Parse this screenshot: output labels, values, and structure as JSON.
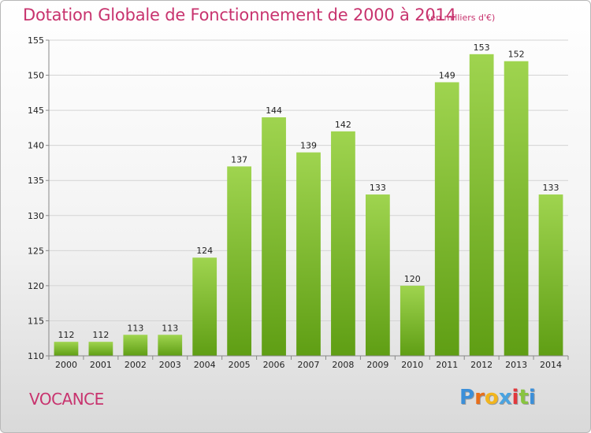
{
  "chart_data": {
    "type": "bar",
    "title": "Dotation Globale de Fonctionnement de 2000 à 2014",
    "unit_note": "(en milliers d'€)",
    "xlabel": "",
    "ylabel": "",
    "categories": [
      "2000",
      "2001",
      "2002",
      "2003",
      "2004",
      "2005",
      "2006",
      "2007",
      "2008",
      "2009",
      "2010",
      "2011",
      "2012",
      "2013",
      "2014"
    ],
    "values": [
      112,
      112,
      113,
      113,
      124,
      137,
      144,
      139,
      142,
      133,
      120,
      149,
      153,
      152,
      133
    ],
    "ylim": [
      110,
      155
    ],
    "yticks": [
      110,
      115,
      120,
      125,
      130,
      135,
      140,
      145,
      150,
      155
    ],
    "grid": true,
    "bar_color": "#7dc22f"
  },
  "footer": {
    "commune": "VOCANCE",
    "logo_letters": [
      "P",
      "r",
      "o",
      "x",
      "i",
      "t",
      "i"
    ],
    "logo_colors": [
      "#3b8fd9",
      "#e86f1a",
      "#f2b51d",
      "#4aa3e0",
      "#e2383c",
      "#88c43f",
      "#3b8fd9"
    ]
  }
}
